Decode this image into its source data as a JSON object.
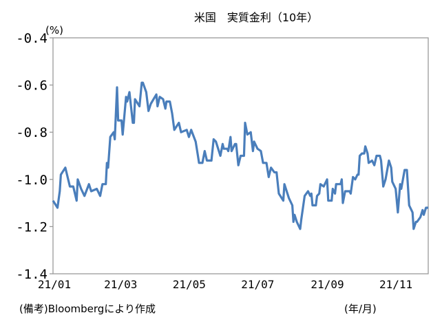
{
  "chart_data": {
    "type": "line",
    "title": "米国　実質金利（10年）",
    "ylabel": "(%)",
    "xlabel": "(年/月)",
    "source_note": "(備考)Bloombergにより作成",
    "ylim": [
      -1.4,
      -0.4
    ],
    "yticks": [
      "-0.4",
      "-0.6",
      "-0.8",
      "-1.0",
      "-1.2",
      "-1.4"
    ],
    "ytick_values": [
      -0.4,
      -0.6,
      -0.8,
      -1.0,
      -1.2,
      -1.4
    ],
    "xlim": [
      "2021-01-01",
      "2021-12-01"
    ],
    "xticks": [
      "21/01",
      "21/03",
      "21/05",
      "21/07",
      "21/09",
      "21/11"
    ],
    "xtick_dates": [
      "2021-01-01",
      "2021-03-01",
      "2021-05-01",
      "2021-07-01",
      "2021-09-01",
      "2021-11-01"
    ],
    "grid": false,
    "legend": "none",
    "line_color": "#4a7ebb",
    "series": [
      {
        "x": [
          "2021-01-01",
          "2021-01-05",
          "2021-01-07",
          "2021-01-08",
          "2021-01-12",
          "2021-01-14",
          "2021-01-16",
          "2021-01-19",
          "2021-01-22",
          "2021-01-23",
          "2021-01-26",
          "2021-01-29",
          "2021-02-02",
          "2021-02-04",
          "2021-02-09",
          "2021-02-12",
          "2021-02-14",
          "2021-02-17",
          "2021-02-18",
          "2021-02-19",
          "2021-02-21",
          "2021-02-24",
          "2021-02-25",
          "2021-02-27",
          "2021-02-28",
          "2021-03-03",
          "2021-03-04",
          "2021-03-07",
          "2021-03-08",
          "2021-03-10",
          "2021-03-13",
          "2021-03-14",
          "2021-03-15",
          "2021-03-19",
          "2021-03-21",
          "2021-03-22",
          "2021-03-25",
          "2021-03-27",
          "2021-03-29",
          "2021-04-03",
          "2021-04-04",
          "2021-04-06",
          "2021-04-09",
          "2021-04-11",
          "2021-04-12",
          "2021-04-15",
          "2021-04-17",
          "2021-04-19",
          "2021-04-23",
          "2021-04-25",
          "2021-04-30",
          "2021-05-02",
          "2021-05-04",
          "2021-05-08",
          "2021-05-10",
          "2021-05-11",
          "2021-05-14",
          "2021-05-16",
          "2021-05-18",
          "2021-05-22",
          "2021-05-24",
          "2021-05-26",
          "2021-05-30",
          "2021-06-01",
          "2021-06-02",
          "2021-06-05",
          "2021-06-06",
          "2021-06-08",
          "2021-06-09",
          "2021-06-12",
          "2021-06-13",
          "2021-06-15",
          "2021-06-17",
          "2021-06-20",
          "2021-06-21",
          "2021-06-23",
          "2021-06-26",
          "2021-06-28",
          "2021-06-29",
          "2021-07-02",
          "2021-07-05",
          "2021-07-07",
          "2021-07-10",
          "2021-07-12",
          "2021-07-14",
          "2021-07-17",
          "2021-07-19",
          "2021-07-21",
          "2021-07-25",
          "2021-07-26",
          "2021-07-30",
          "2021-08-02",
          "2021-08-03",
          "2021-08-04",
          "2021-08-06",
          "2021-08-09",
          "2021-08-10",
          "2021-08-13",
          "2021-08-16",
          "2021-08-18",
          "2021-08-19",
          "2021-08-20",
          "2021-08-23",
          "2021-08-24",
          "2021-08-26",
          "2021-08-27",
          "2021-08-30",
          "2021-09-02",
          "2021-09-03",
          "2021-09-06",
          "2021-09-07",
          "2021-09-09",
          "2021-09-10",
          "2021-09-14",
          "2021-09-15",
          "2021-09-16",
          "2021-09-18",
          "2021-09-22",
          "2021-09-23",
          "2021-09-25",
          "2021-09-27",
          "2021-09-29",
          "2021-09-30",
          "2021-10-01",
          "2021-10-03",
          "2021-10-05",
          "2021-10-06",
          "2021-10-08",
          "2021-10-09",
          "2021-10-12",
          "2021-10-14",
          "2021-10-16",
          "2021-10-19",
          "2021-10-20",
          "2021-10-22",
          "2021-10-24",
          "2021-10-27",
          "2021-10-29",
          "2021-10-30",
          "2021-11-02",
          "2021-11-04",
          "2021-11-06",
          "2021-11-07",
          "2021-11-10",
          "2021-11-12",
          "2021-11-14",
          "2021-11-17",
          "2021-11-18",
          "2021-11-20",
          "2021-11-21",
          "2021-11-24",
          "2021-11-26",
          "2021-11-27",
          "2021-11-29",
          "2021-12-01"
        ],
        "y": [
          -1.09,
          -1.12,
          -1.05,
          -0.98,
          -0.95,
          -0.99,
          -1.03,
          -1.03,
          -1.09,
          -1.0,
          -1.04,
          -1.07,
          -1.02,
          -1.05,
          -1.04,
          -1.07,
          -1.02,
          -1.02,
          -0.93,
          -0.95,
          -0.82,
          -0.8,
          -0.83,
          -0.61,
          -0.75,
          -0.75,
          -0.81,
          -0.65,
          -0.67,
          -0.63,
          -0.76,
          -0.76,
          -0.66,
          -0.69,
          -0.59,
          -0.59,
          -0.63,
          -0.71,
          -0.68,
          -0.64,
          -0.69,
          -0.65,
          -0.66,
          -0.7,
          -0.67,
          -0.67,
          -0.72,
          -0.79,
          -0.76,
          -0.8,
          -0.79,
          -0.82,
          -0.79,
          -0.84,
          -0.9,
          -0.93,
          -0.93,
          -0.88,
          -0.92,
          -0.92,
          -0.83,
          -0.84,
          -0.9,
          -0.85,
          -0.87,
          -0.87,
          -0.88,
          -0.82,
          -0.88,
          -0.85,
          -0.85,
          -0.94,
          -0.9,
          -0.9,
          -0.76,
          -0.81,
          -0.8,
          -0.88,
          -0.84,
          -0.87,
          -0.88,
          -0.93,
          -0.93,
          -0.99,
          -0.95,
          -0.97,
          -0.97,
          -1.06,
          -1.09,
          -1.02,
          -1.08,
          -1.11,
          -1.18,
          -1.15,
          -1.18,
          -1.21,
          -1.17,
          -1.07,
          -1.05,
          -1.07,
          -1.06,
          -1.11,
          -1.11,
          -1.07,
          -1.06,
          -1.02,
          -1.03,
          -1.0,
          -1.09,
          -1.09,
          -1.04,
          -1.06,
          -1.02,
          -1.02,
          -1.0,
          -1.1,
          -1.05,
          -1.05,
          -1.06,
          -0.99,
          -1.0,
          -0.98,
          -0.98,
          -0.9,
          -0.89,
          -0.89,
          -0.86,
          -0.89,
          -0.93,
          -0.92,
          -0.94,
          -0.9,
          -0.9,
          -0.92,
          -1.03,
          -1.0,
          -0.92,
          -0.95,
          -1.01,
          -1.04,
          -1.14,
          -1.02,
          -1.04,
          -0.96,
          -0.96,
          -1.11,
          -1.14,
          -1.21,
          -1.18,
          -1.18,
          -1.16,
          -1.13,
          -1.15,
          -1.12,
          -1.12
        ]
      }
    ]
  }
}
